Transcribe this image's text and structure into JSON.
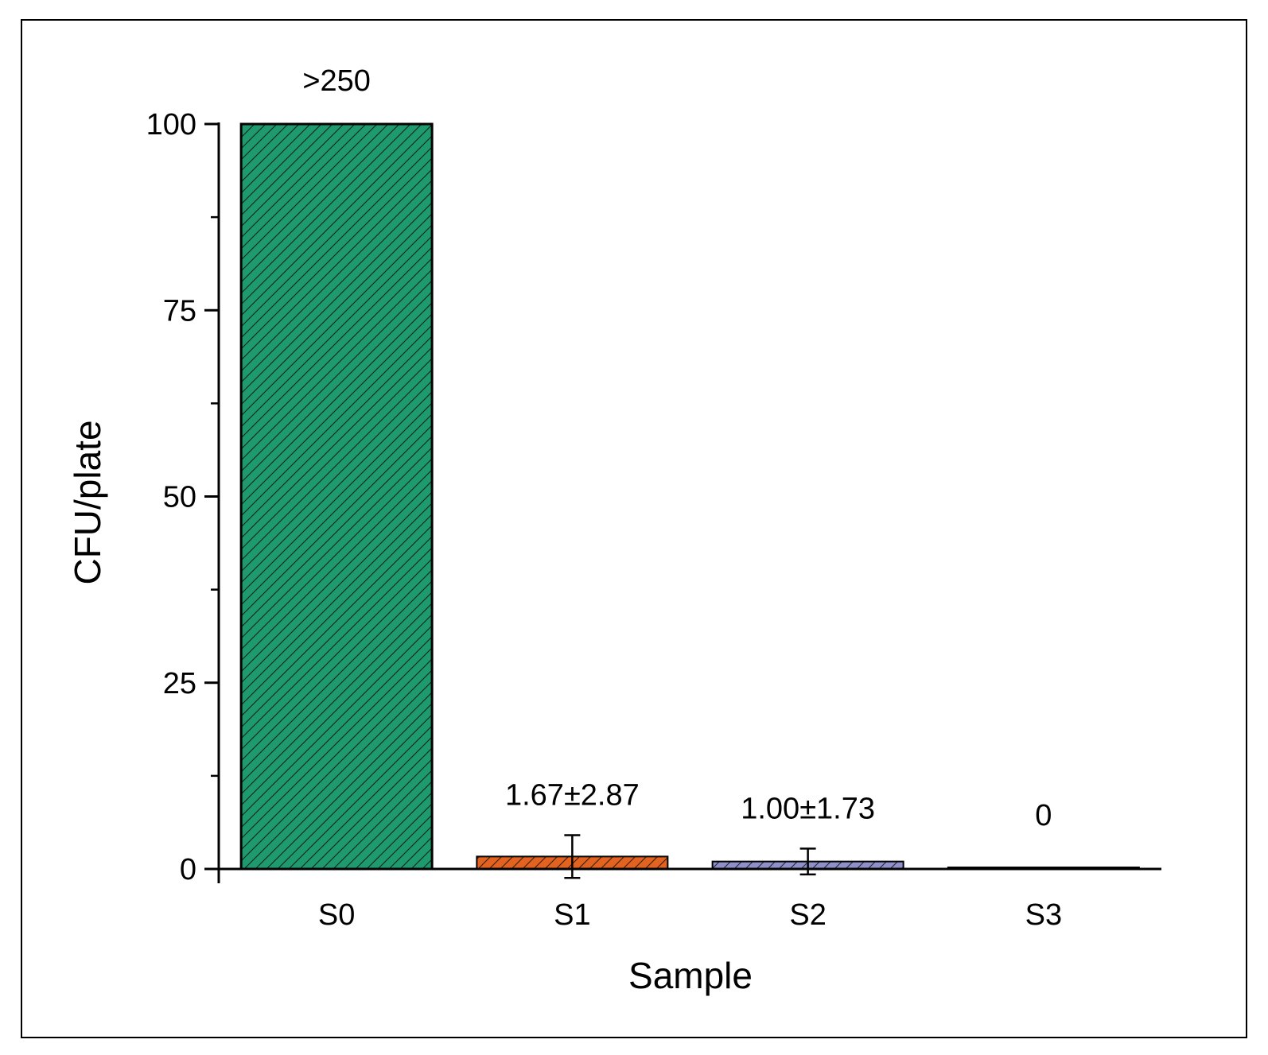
{
  "chart_data": {
    "type": "bar",
    "title": "",
    "xlabel": "Sample",
    "ylabel": "CFU/plate",
    "ylim": [
      0,
      100
    ],
    "yticks": [
      0,
      25,
      50,
      75,
      100
    ],
    "categories": [
      "S0",
      "S1",
      "S2",
      "S3"
    ],
    "values": [
      100,
      1.67,
      1.0,
      0
    ],
    "errors": [
      null,
      2.87,
      1.73,
      null
    ],
    "data_labels": [
      ">250",
      "1.67±2.87",
      "1.00±1.73",
      "0"
    ],
    "colors": [
      "#1f9a6e",
      "#e2631f",
      "#8f8fc9",
      "#3c3c8c"
    ],
    "hatch": "diagonal",
    "grid": false,
    "legend": "none"
  }
}
